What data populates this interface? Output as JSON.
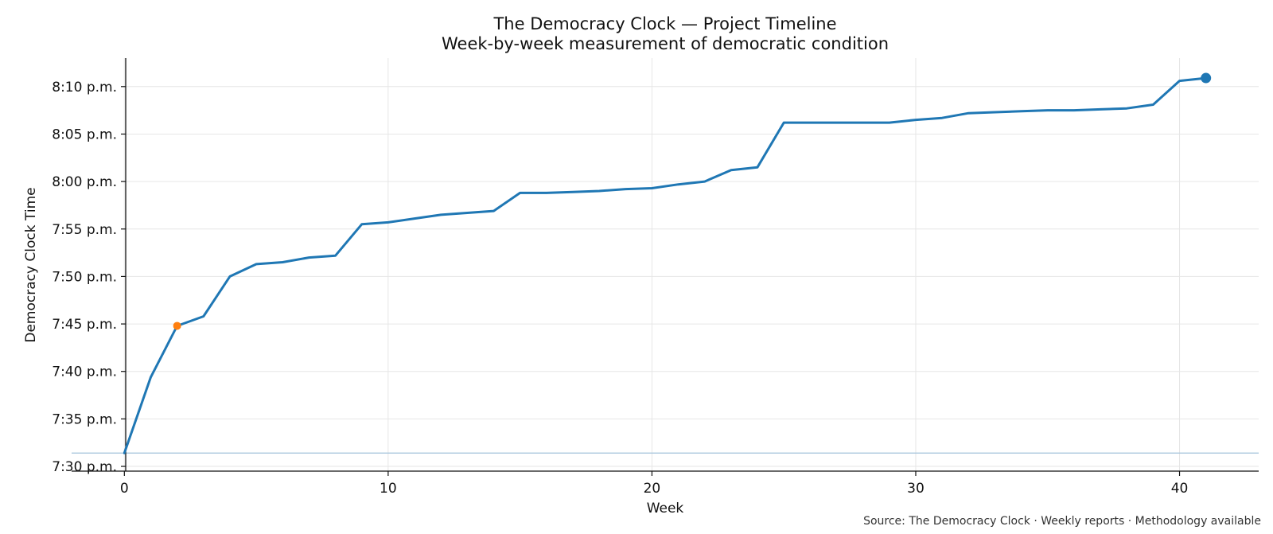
{
  "chart_data": {
    "type": "line",
    "title": "The Democracy Clock — Project Timeline",
    "subtitle": "Week-by-week measurement of democratic condition",
    "xlabel": "Week",
    "ylabel": "Democracy Clock Time",
    "xlim": [
      -2,
      43
    ],
    "ylim": [
      "7:29.5 p.m.",
      "8:13 p.m."
    ],
    "y_unit": "minutes past 7:00 p.m.",
    "ylim_minutes": [
      29.5,
      73
    ],
    "x_ticks": [
      0,
      10,
      20,
      30,
      40
    ],
    "y_ticks": [
      {
        "label": "7:30 p.m.",
        "minutes": 30
      },
      {
        "label": "7:35 p.m.",
        "minutes": 35
      },
      {
        "label": "7:40 p.m.",
        "minutes": 40
      },
      {
        "label": "7:45 p.m.",
        "minutes": 45
      },
      {
        "label": "7:50 p.m.",
        "minutes": 50
      },
      {
        "label": "7:55 p.m.",
        "minutes": 55
      },
      {
        "label": "8:00 p.m.",
        "minutes": 60
      },
      {
        "label": "8:05 p.m.",
        "minutes": 65
      },
      {
        "label": "8:10 p.m.",
        "minutes": 70
      }
    ],
    "grid": true,
    "series": [
      {
        "color": "#1f77b4",
        "x": [
          0,
          1,
          2,
          3,
          4,
          5,
          6,
          7,
          8,
          9,
          10,
          11,
          12,
          13,
          14,
          15,
          16,
          17,
          18,
          19,
          20,
          21,
          22,
          23,
          24,
          25,
          26,
          27,
          28,
          29,
          30,
          31,
          32,
          33,
          34,
          35,
          36,
          37,
          38,
          39,
          40,
          41
        ],
        "y_minutes": [
          31.4,
          39.4,
          44.8,
          45.8,
          50.0,
          51.3,
          51.5,
          52.0,
          52.2,
          55.5,
          55.7,
          56.1,
          56.5,
          56.7,
          56.9,
          58.8,
          58.8,
          58.9,
          59.0,
          59.2,
          59.3,
          59.7,
          60.0,
          61.2,
          61.5,
          66.2,
          66.2,
          66.2,
          66.2,
          66.2,
          66.5,
          66.7,
          67.2,
          67.3,
          67.4,
          67.5,
          67.5,
          67.6,
          67.7,
          68.1,
          70.6,
          70.9
        ]
      }
    ],
    "highlights": [
      {
        "x": 2,
        "y_minutes": 44.8,
        "color": "#ff7f0e"
      },
      {
        "x": 41,
        "y_minutes": 70.9,
        "color": "#1f77b4"
      }
    ],
    "reference_line": {
      "y_minutes": 31.4,
      "color": "#a9c6dd"
    },
    "source": "Source: The Democracy Clock · Weekly reports · Methodology available"
  }
}
